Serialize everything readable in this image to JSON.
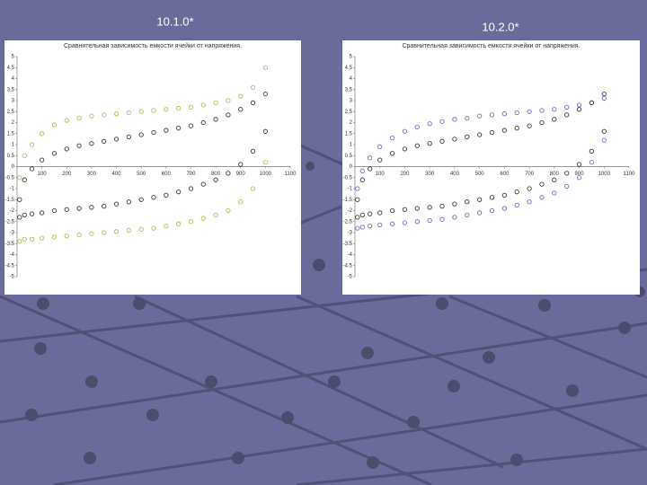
{
  "slide": {
    "labels": [
      "10.1.0*",
      "10.2.0*"
    ]
  },
  "chart_data": [
    {
      "type": "scatter",
      "title": "Сравнительная зависимость емкости ячейки от напряжения.",
      "x": [
        10,
        30,
        60,
        100,
        150,
        200,
        250,
        300,
        350,
        400,
        450,
        500,
        550,
        600,
        650,
        700,
        750,
        800,
        850,
        900,
        950,
        1000
      ],
      "xlim": [
        0,
        1100
      ],
      "xticks": [
        100,
        200,
        300,
        400,
        500,
        600,
        700,
        800,
        900,
        1000,
        1100
      ],
      "ylim": [
        -5,
        5
      ],
      "yticks": [
        5,
        4.5,
        4,
        3.5,
        3,
        2.5,
        2,
        1.5,
        1,
        0.5,
        0,
        -0.5,
        -1,
        -1.5,
        -2,
        -2.5,
        -3,
        -3.5,
        -4,
        -4.5,
        -5
      ],
      "series": [
        {
          "color": "#b8bc55",
          "values": [
            -0.5,
            0.5,
            1.0,
            1.5,
            1.9,
            2.1,
            2.2,
            2.3,
            2.35,
            2.4,
            2.45,
            2.5,
            2.55,
            2.6,
            2.65,
            2.7,
            2.8,
            2.9,
            3.0,
            3.2,
            3.6,
            4.5
          ]
        },
        {
          "color": "#b8bc55",
          "values": [
            -3.4,
            -3.3,
            -3.3,
            -3.25,
            -3.2,
            -3.15,
            -3.1,
            -3.05,
            -3.0,
            -2.95,
            -2.9,
            -2.85,
            -2.8,
            -2.7,
            -2.6,
            -2.5,
            -2.35,
            -2.2,
            -2.0,
            -1.6,
            -1.0,
            0.2
          ]
        },
        {
          "color": "#3a3a3a",
          "values": [
            -1.5,
            -0.6,
            -0.1,
            0.3,
            0.6,
            0.8,
            0.95,
            1.05,
            1.15,
            1.25,
            1.35,
            1.45,
            1.55,
            1.65,
            1.75,
            1.85,
            2.0,
            2.15,
            2.35,
            2.6,
            2.9,
            3.3
          ]
        },
        {
          "color": "#3a3a3a",
          "values": [
            -2.3,
            -2.2,
            -2.15,
            -2.1,
            -2.0,
            -1.95,
            -1.9,
            -1.85,
            -1.8,
            -1.7,
            -1.6,
            -1.5,
            -1.4,
            -1.3,
            -1.15,
            -1.0,
            -0.8,
            -0.6,
            -0.3,
            0.1,
            0.7,
            1.6
          ]
        }
      ]
    },
    {
      "type": "scatter",
      "title": "Сравнительная зависимость емкости ячейки от напряжения.",
      "x": [
        10,
        30,
        60,
        100,
        150,
        200,
        250,
        300,
        350,
        400,
        450,
        500,
        550,
        600,
        650,
        700,
        750,
        800,
        850,
        900,
        950,
        1000
      ],
      "xlim": [
        0,
        1100
      ],
      "xticks": [
        100,
        200,
        300,
        400,
        500,
        600,
        700,
        800,
        900,
        1000,
        1100
      ],
      "ylim": [
        -5,
        5
      ],
      "yticks": [
        5,
        4.5,
        4,
        3.5,
        3,
        2.5,
        2,
        1.5,
        1,
        0.5,
        0,
        -0.5,
        -1,
        -1.5,
        -2,
        -2.5,
        -3,
        -3.5,
        -4,
        -4.5,
        -5
      ],
      "series": [
        {
          "color": "#6a72c8",
          "values": [
            -1.0,
            -0.2,
            0.4,
            0.9,
            1.3,
            1.6,
            1.8,
            1.95,
            2.05,
            2.15,
            2.2,
            2.3,
            2.35,
            2.4,
            2.45,
            2.5,
            2.55,
            2.6,
            2.7,
            2.8,
            2.9,
            3.1
          ]
        },
        {
          "color": "#6a72c8",
          "values": [
            -2.8,
            -2.75,
            -2.7,
            -2.65,
            -2.6,
            -2.55,
            -2.5,
            -2.45,
            -2.4,
            -2.3,
            -2.2,
            -2.1,
            -2.0,
            -1.9,
            -1.75,
            -1.6,
            -1.4,
            -1.2,
            -0.9,
            -0.5,
            0.2,
            1.2
          ]
        },
        {
          "color": "#3a3a3a",
          "values": [
            -1.5,
            -0.6,
            -0.1,
            0.3,
            0.6,
            0.8,
            0.95,
            1.05,
            1.15,
            1.25,
            1.35,
            1.45,
            1.55,
            1.65,
            1.75,
            1.85,
            2.0,
            2.15,
            2.35,
            2.6,
            2.9,
            3.3
          ]
        },
        {
          "color": "#3a3a3a",
          "values": [
            -2.3,
            -2.2,
            -2.15,
            -2.1,
            -2.0,
            -1.95,
            -1.9,
            -1.85,
            -1.8,
            -1.7,
            -1.6,
            -1.5,
            -1.4,
            -1.3,
            -1.15,
            -1.0,
            -0.8,
            -0.6,
            -0.3,
            0.1,
            0.7,
            1.6
          ]
        }
      ]
    }
  ]
}
